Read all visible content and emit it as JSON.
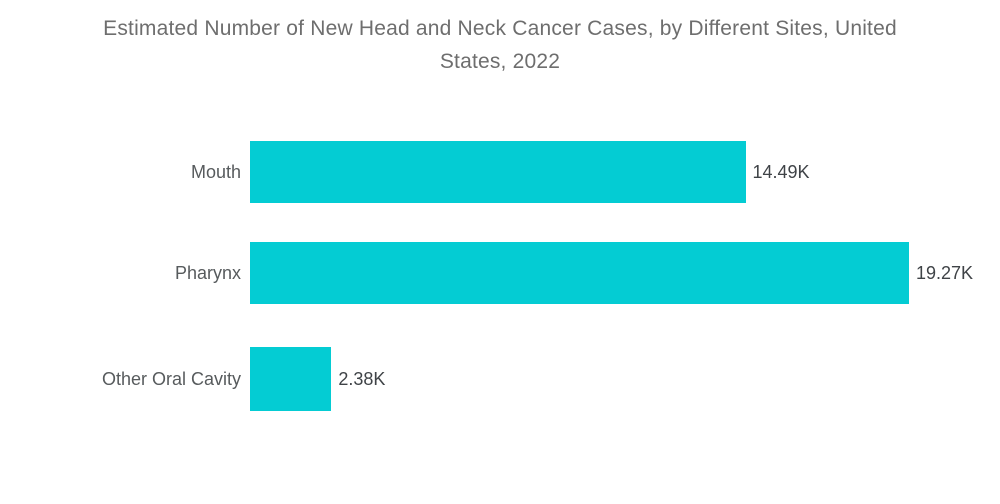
{
  "title": {
    "text": "Estimated Number of New Head and Neck Cancer Cases, by Different Sites, United States, 2022",
    "lines": [
      "Estimated Number of New Head and Neck Cancer Cases, by Different Sites, United",
      "States, 2022"
    ]
  },
  "colors": {
    "background": "#FFFFFF",
    "bar": "#04CCD3",
    "title_text": "#6E6E6E",
    "category_label": "#575B5D",
    "value_label": "#3F4347"
  },
  "chart_data": {
    "type": "bar",
    "orientation": "horizontal",
    "title": "Estimated Number of New Head and Neck Cancer Cases, by Different Sites, United States, 2022",
    "categories": [
      "Mouth",
      "Pharynx",
      "Other Oral Cavity"
    ],
    "values": [
      14.49,
      19.27,
      2.38
    ],
    "value_labels": [
      "14.49K",
      "19.27K",
      "2.38K"
    ],
    "unit": "K (thousands of cases)",
    "xlabel": "",
    "ylabel": "",
    "xlim": [
      0,
      19.27
    ],
    "grid": false,
    "legend": false,
    "axis_lines": false,
    "value_label_position": "outside-end"
  }
}
